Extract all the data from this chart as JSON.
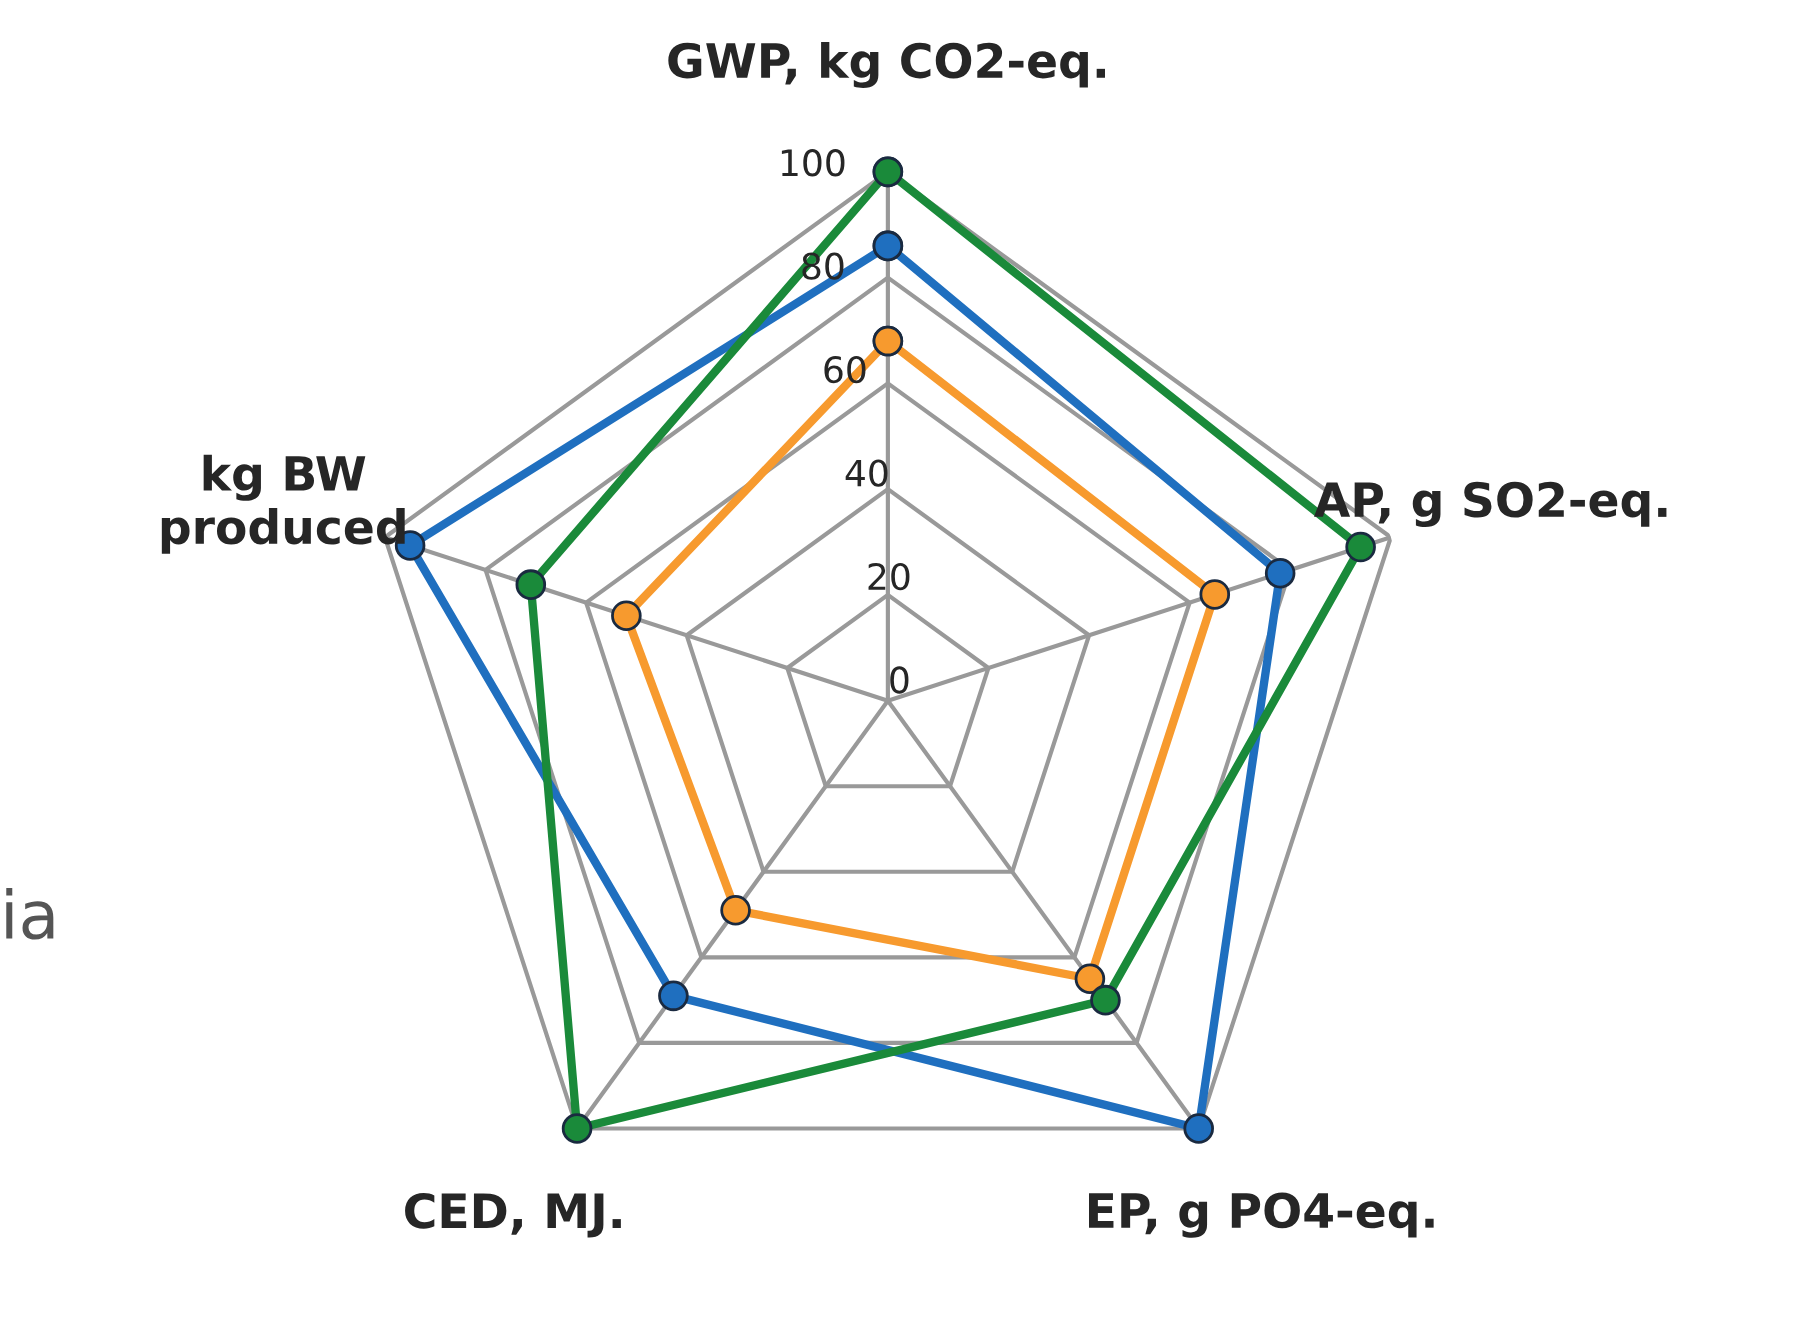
{
  "chart_data": {
    "type": "radar",
    "categories": [
      "GWP, kg CO2-eq.",
      "AP, g SO2-eq.",
      "EP, g PO4-eq.",
      "CED, MJ.",
      "kg BW\nproduced"
    ],
    "series": [
      {
        "color": "#1f6fbf",
        "values": [
          86,
          78,
          100,
          69,
          95
        ]
      },
      {
        "color": "#f79a2e",
        "values": [
          68,
          65,
          65,
          49,
          52
        ]
      },
      {
        "color": "#1a8a3a",
        "values": [
          100,
          94,
          70,
          100,
          71
        ]
      }
    ],
    "ylim": [
      0,
      100
    ],
    "yticks": [
      0,
      20,
      40,
      60,
      80,
      100
    ],
    "grid": true,
    "marker": "circle",
    "line_style": "solid",
    "annotations": [
      "ia"
    ]
  }
}
